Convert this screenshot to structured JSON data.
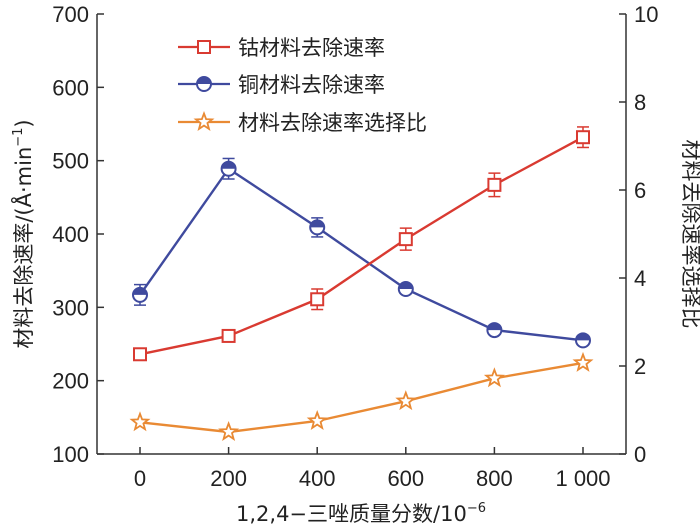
{
  "chart_data": {
    "type": "line",
    "x": [
      0,
      200,
      400,
      600,
      800,
      1000
    ],
    "x_tick_labels": [
      "0",
      "200",
      "400",
      "600",
      "800",
      "1 000"
    ],
    "xlabel_prefix": "1,2,4−三唑质量分数/10",
    "xlabel_exponent": "−6",
    "ylabel_left_prefix": "材料去除速率/(Å·min",
    "ylabel_left_exponent": "−1",
    "ylabel_left_suffix": ")",
    "ylabel_right": "材料去除速率选择比",
    "ylim_left": [
      100,
      700
    ],
    "yticks_left": [
      "100",
      "200",
      "300",
      "400",
      "500",
      "600",
      "700"
    ],
    "ylim_right": [
      0,
      10
    ],
    "yticks_right": [
      "0",
      "2",
      "4",
      "6",
      "8",
      "10"
    ],
    "series": [
      {
        "name": "钴材料去除速率",
        "axis": "left",
        "marker": "square",
        "color": "#d93a31",
        "values": [
          236,
          261,
          311,
          393,
          467,
          532
        ],
        "errors": [
          6,
          6,
          14,
          15,
          16,
          14
        ]
      },
      {
        "name": "铜材料去除速率",
        "axis": "left",
        "marker": "circle",
        "color": "#3f4a9e",
        "values": [
          317,
          489,
          409,
          325,
          269,
          255
        ],
        "errors": [
          14,
          14,
          13,
          5,
          5,
          5
        ]
      },
      {
        "name": "材料去除速率选择比",
        "axis": "right",
        "marker": "star",
        "color": "#e98a34",
        "values": [
          0.72,
          0.5,
          0.75,
          1.2,
          1.72,
          2.07
        ],
        "errors": [
          0,
          0,
          0,
          0,
          0,
          0
        ]
      }
    ]
  }
}
